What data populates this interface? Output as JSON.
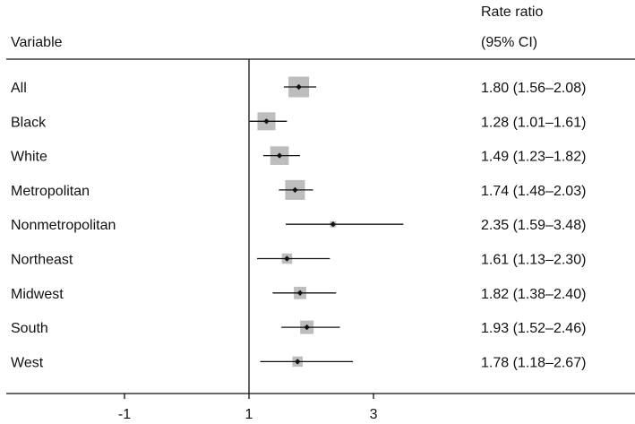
{
  "colors": {
    "box": "#bdbdbd",
    "line": "#111111",
    "text": "#111111",
    "background": "#ffffff"
  },
  "chart_data": {
    "type": "forest",
    "header_left": "Variable",
    "header_right_line1": "Rate ratio",
    "header_right_line2": "(95% CI)",
    "reference_line": 1,
    "xlim": [
      -3.0,
      4.05
    ],
    "x_ticks": [
      {
        "value": -1,
        "label": "-1"
      },
      {
        "value": 1,
        "label": "1"
      },
      {
        "value": 3,
        "label": "3"
      }
    ],
    "rows": [
      {
        "label": "All",
        "estimate": 1.8,
        "lower": 1.56,
        "upper": 2.08,
        "ci_text": "1.80 (1.56–2.08)",
        "weight": 1.0
      },
      {
        "label": "Black",
        "estimate": 1.28,
        "lower": 1.01,
        "upper": 1.61,
        "ci_text": "1.28 (1.01–1.61)",
        "weight": 0.87
      },
      {
        "label": "White",
        "estimate": 1.49,
        "lower": 1.23,
        "upper": 1.82,
        "ci_text": "1.49 (1.23–1.82)",
        "weight": 0.9
      },
      {
        "label": "Metropolitan",
        "estimate": 1.74,
        "lower": 1.48,
        "upper": 2.03,
        "ci_text": "1.74 (1.48–2.03)",
        "weight": 0.96
      },
      {
        "label": "Nonmetropolitan",
        "estimate": 2.35,
        "lower": 1.59,
        "upper": 3.48,
        "ci_text": "2.35 (1.59–3.48)",
        "weight": 0.3
      },
      {
        "label": "Northeast",
        "estimate": 1.61,
        "lower": 1.13,
        "upper": 2.3,
        "ci_text": "1.61 (1.13–2.30)",
        "weight": 0.5
      },
      {
        "label": "Midwest",
        "estimate": 1.82,
        "lower": 1.38,
        "upper": 2.4,
        "ci_text": "1.82 (1.38–2.40)",
        "weight": 0.6
      },
      {
        "label": "South",
        "estimate": 1.93,
        "lower": 1.52,
        "upper": 2.46,
        "ci_text": "1.93 (1.52–2.46)",
        "weight": 0.65
      },
      {
        "label": "West",
        "estimate": 1.78,
        "lower": 1.18,
        "upper": 2.67,
        "ci_text": "1.78 (1.18–2.67)",
        "weight": 0.5
      }
    ]
  }
}
